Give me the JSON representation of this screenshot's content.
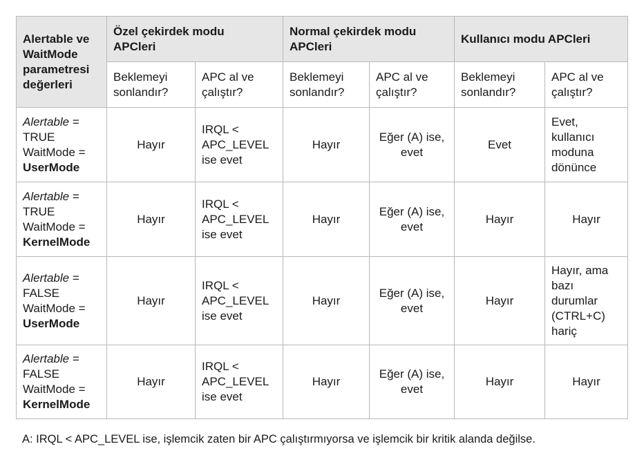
{
  "table": {
    "corner_header": [
      "Alertable ve",
      "WaitMode",
      "parametresi",
      "değerleri"
    ],
    "groups": [
      {
        "label": [
          "Özel çekirdek modu",
          "APCleri"
        ]
      },
      {
        "label": [
          "Normal çekirdek modu",
          "APCleri"
        ]
      },
      {
        "label": [
          "Kullanıcı modu APCleri"
        ]
      }
    ],
    "sub_headers": {
      "wait": [
        "Beklemeyi",
        "sonlandır?"
      ],
      "apc": [
        "APC al ve",
        "çalıştır?"
      ]
    },
    "rows": [
      {
        "alertable_label": "Alertable",
        "alertable_eq": " =",
        "alertable_val": "TRUE",
        "waitmode_label": "WaitMode =",
        "waitmode_val": "UserMode",
        "special_wait": "Hayır",
        "special_apc": [
          "IRQL <",
          "APC_LEVEL",
          "ise evet"
        ],
        "normal_wait": "Hayır",
        "normal_apc": [
          "Eğer (A) ise,",
          "evet"
        ],
        "user_wait": "Evet",
        "user_apc": [
          "Evet,",
          "kullanıcı",
          "moduna",
          "dönünce"
        ]
      },
      {
        "alertable_label": "Alertable",
        "alertable_eq": " =",
        "alertable_val": "TRUE",
        "waitmode_label": "WaitMode =",
        "waitmode_val": "KernelMode",
        "special_wait": "Hayır",
        "special_apc": [
          "IRQL <",
          "APC_LEVEL",
          "ise evet"
        ],
        "normal_wait": "Hayır",
        "normal_apc": [
          "Eğer (A) ise,",
          "evet"
        ],
        "user_wait": "Hayır",
        "user_apc": [
          "Hayır"
        ]
      },
      {
        "alertable_label": "Alertable",
        "alertable_eq": " =",
        "alertable_val": "FALSE",
        "waitmode_label": "WaitMode =",
        "waitmode_val": "UserMode",
        "special_wait": "Hayır",
        "special_apc": [
          "IRQL <",
          "APC_LEVEL",
          "ise evet"
        ],
        "normal_wait": "Hayır",
        "normal_apc": [
          "Eğer (A) ise,",
          "evet"
        ],
        "user_wait": "Hayır",
        "user_apc": [
          "Hayır, ama",
          "bazı",
          "durumlar",
          "(CTRL+C)",
          "hariç"
        ]
      },
      {
        "alertable_label": "Alertable",
        "alertable_eq": " =",
        "alertable_val": "FALSE",
        "waitmode_label": "WaitMode =",
        "waitmode_val": "KernelMode",
        "special_wait": "Hayır",
        "special_apc": [
          "IRQL <",
          "APC_LEVEL",
          "ise evet"
        ],
        "normal_wait": "Hayır",
        "normal_apc": [
          "Eğer (A) ise,",
          "evet"
        ],
        "user_wait": "Hayır",
        "user_apc": [
          "Hayır"
        ]
      }
    ]
  },
  "footnote": "A: IRQL < APC_LEVEL ise, işlemcik zaten bir APC çalıştırmıyorsa ve işlemcik bir kritik alanda değilse."
}
